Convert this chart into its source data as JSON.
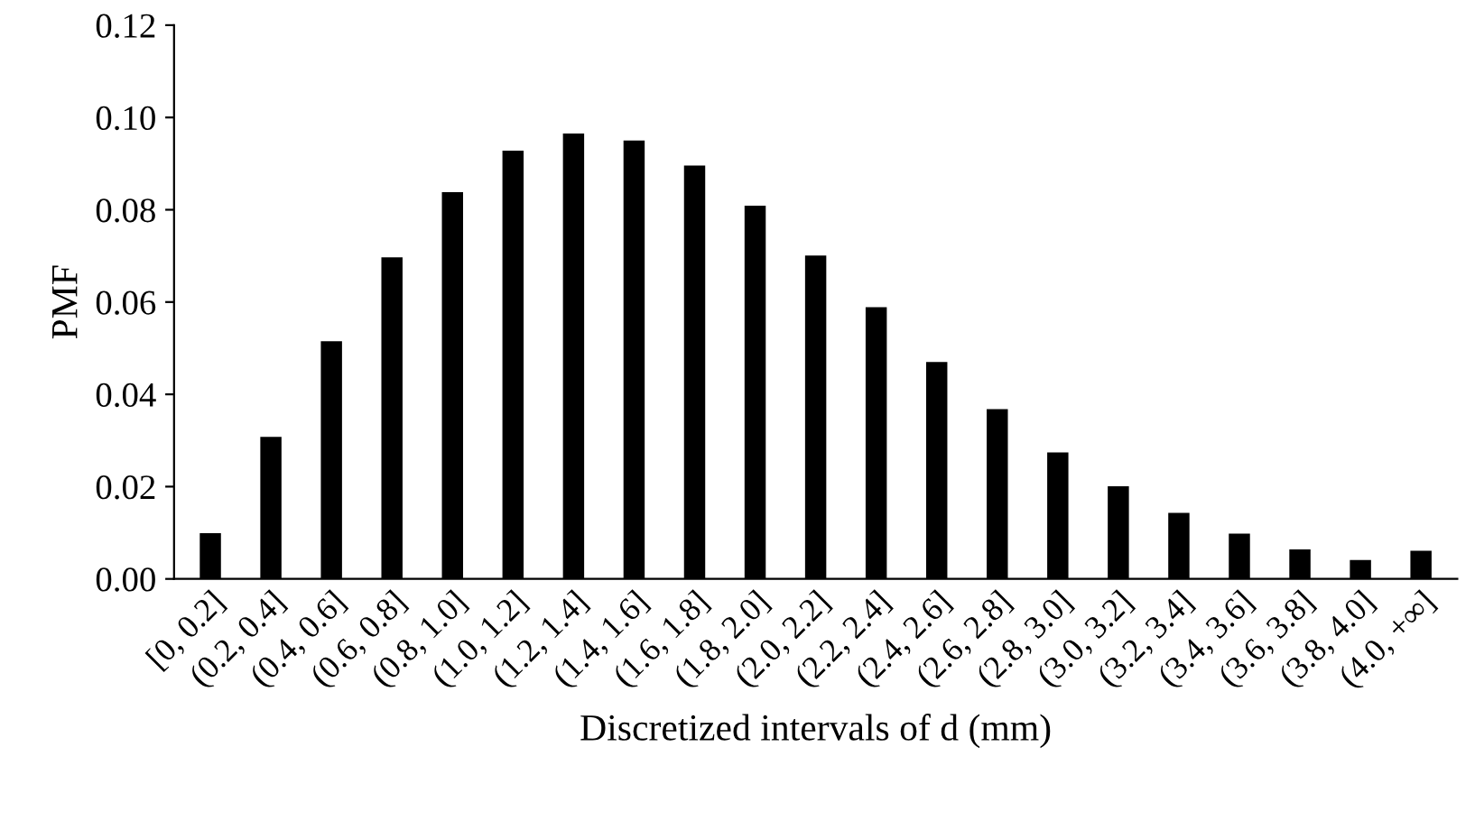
{
  "chart_data": {
    "type": "bar",
    "xlabel": "Discretized intervals of d (mm)",
    "ylabel": "PMF",
    "categories": [
      "[0, 0.2]",
      "(0.2, 0.4]",
      "(0.4, 0.6]",
      "(0.6, 0.8]",
      "(0.8, 1.0]",
      "(1.0, 1.2]",
      "(1.2, 1.4]",
      "(1.4, 1.6]",
      "(1.6, 1.8]",
      "(1.8, 2.0]",
      "(2.0, 2.2]",
      "(2.2, 2.4]",
      "(2.4, 2.6]",
      "(2.6, 2.8]",
      "(2.8, 3.0]",
      "(3.0, 3.2]",
      "(3.2, 3.4]",
      "(3.4, 3.6]",
      "(3.6, 3.8]",
      "(3.8, 4.0]",
      "(4.0, +∞]"
    ],
    "values": [
      0.0099,
      0.0308,
      0.0515,
      0.0697,
      0.0838,
      0.0928,
      0.0965,
      0.095,
      0.0896,
      0.0809,
      0.0701,
      0.0589,
      0.047,
      0.0368,
      0.0274,
      0.0201,
      0.0143,
      0.0098,
      0.0064,
      0.0041,
      0.0061
    ],
    "color": "#000000",
    "ylim": [
      0,
      0.12
    ],
    "yticks": [
      {
        "value": 0,
        "label": "0.00"
      },
      {
        "value": 0.02,
        "label": "0.02"
      },
      {
        "value": 0.04,
        "label": "0.04"
      },
      {
        "value": 0.06,
        "label": "0.06"
      },
      {
        "value": 0.08,
        "label": "0.08"
      },
      {
        "value": 0.1,
        "label": "0.10"
      },
      {
        "value": 0.12,
        "label": "0.12"
      }
    ],
    "grid": false,
    "legend": false
  }
}
